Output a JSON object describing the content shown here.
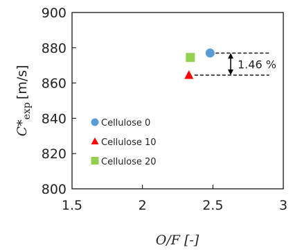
{
  "chart_data": {
    "type": "scatter",
    "title": "",
    "xlabel": "O/F [-]",
    "ylabel_main": "C*",
    "ylabel_sub": "exp",
    "ylabel_unit": "[m/s]",
    "xlim": [
      1.5,
      3
    ],
    "ylim": [
      800,
      900
    ],
    "xticks": [
      "1.5",
      "2",
      "2.5",
      "3"
    ],
    "xtick_values": [
      1.5,
      2,
      2.5,
      3
    ],
    "yticks": [
      "800",
      "820",
      "840",
      "860",
      "880",
      "900"
    ],
    "ytick_values": [
      800,
      820,
      840,
      860,
      880,
      900
    ],
    "grid": false,
    "legend_position": "left-bottom",
    "series": [
      {
        "name": "Cellulose 0",
        "marker": "circle",
        "color": "#5b9bd5",
        "x": [
          2.48
        ],
        "y": [
          877
        ]
      },
      {
        "name": "Cellulose 10",
        "marker": "triangle",
        "color": "#ff0000",
        "x": [
          2.33
        ],
        "y": [
          864.5
        ]
      },
      {
        "name": "Cellulose 20",
        "marker": "square",
        "color": "#92d050",
        "x": [
          2.34
        ],
        "y": [
          874.5
        ]
      }
    ],
    "annotation": {
      "text": "1.46 %",
      "y_top": 877,
      "y_bottom": 864.5,
      "x_start_top": 2.48,
      "x_start_bottom": 2.33,
      "x_end": 2.9,
      "x_arrow": 2.87
    }
  }
}
